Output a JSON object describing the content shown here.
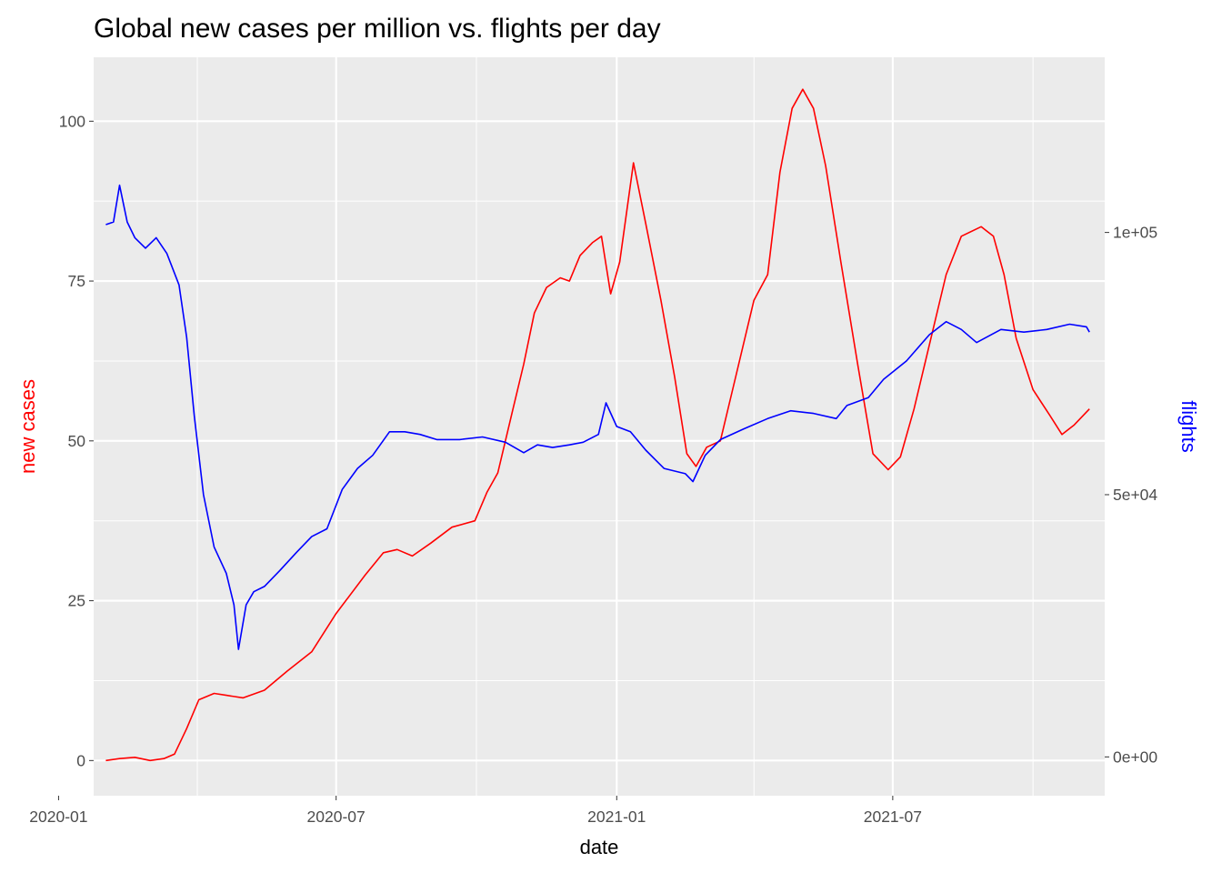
{
  "chart_data": {
    "type": "line",
    "title": "Global new cases per million vs. flights per day",
    "xlabel": "date",
    "ylabel_left": "new cases",
    "ylabel_right": "flights",
    "xlim": [
      "2020-01-24",
      "2021-11-17"
    ],
    "ylim_left": [
      -5.5,
      110
    ],
    "ylim_right": [
      -7400,
      133400
    ],
    "x_ticks": [
      "2020-01",
      "2020-07",
      "2021-01",
      "2021-07"
    ],
    "y_ticks_left": [
      0,
      25,
      50,
      75,
      100
    ],
    "y_tick_labels_left": [
      "0",
      "25",
      "50",
      "75",
      "100"
    ],
    "y_ticks_right": [
      0,
      50000,
      100000
    ],
    "y_tick_labels_right": [
      "0e+00",
      "5e+04",
      "1e+05"
    ],
    "grid": true,
    "legend": "none",
    "colors": {
      "panel": "#ebebeb",
      "grid": "#ffffff",
      "new_cases": "#ff0000",
      "flights": "#0000ff",
      "tick_text": "#4d4d4d"
    },
    "series": [
      {
        "axis": "left",
        "color": "#ff0000",
        "points": [
          [
            "2020-02-01",
            0.0
          ],
          [
            "2020-02-10",
            0.3
          ],
          [
            "2020-02-20",
            0.5
          ],
          [
            "2020-03-01",
            0.0
          ],
          [
            "2020-03-10",
            0.3
          ],
          [
            "2020-03-17",
            1.0
          ],
          [
            "2020-03-25",
            5.0
          ],
          [
            "2020-04-02",
            9.5
          ],
          [
            "2020-04-12",
            10.5
          ],
          [
            "2020-04-20",
            10.2
          ],
          [
            "2020-05-01",
            9.8
          ],
          [
            "2020-05-15",
            11.0
          ],
          [
            "2020-05-30",
            14.0
          ],
          [
            "2020-06-15",
            17.0
          ],
          [
            "2020-07-01",
            23.0
          ],
          [
            "2020-07-20",
            29.0
          ],
          [
            "2020-08-01",
            32.5
          ],
          [
            "2020-08-10",
            33.0
          ],
          [
            "2020-08-20",
            32.0
          ],
          [
            "2020-09-01",
            34.0
          ],
          [
            "2020-09-15",
            36.5
          ],
          [
            "2020-09-30",
            37.5
          ],
          [
            "2020-10-08",
            42.0
          ],
          [
            "2020-10-15",
            45.0
          ],
          [
            "2020-10-25",
            55.0
          ],
          [
            "2020-11-01",
            62.0
          ],
          [
            "2020-11-08",
            70.0
          ],
          [
            "2020-11-16",
            74.0
          ],
          [
            "2020-11-25",
            75.5
          ],
          [
            "2020-12-01",
            75.0
          ],
          [
            "2020-12-08",
            79.0
          ],
          [
            "2020-12-16",
            81.0
          ],
          [
            "2020-12-22",
            82.0
          ],
          [
            "2020-12-28",
            73.0
          ],
          [
            "2021-01-03",
            78.0
          ],
          [
            "2021-01-12",
            93.5
          ],
          [
            "2021-01-20",
            84.0
          ],
          [
            "2021-01-30",
            72.0
          ],
          [
            "2021-02-08",
            60.0
          ],
          [
            "2021-02-16",
            48.0
          ],
          [
            "2021-02-22",
            46.0
          ],
          [
            "2021-03-01",
            49.0
          ],
          [
            "2021-03-10",
            50.0
          ],
          [
            "2021-03-20",
            60.0
          ],
          [
            "2021-04-01",
            72.0
          ],
          [
            "2021-04-10",
            76.0
          ],
          [
            "2021-04-18",
            92.0
          ],
          [
            "2021-04-26",
            102.0
          ],
          [
            "2021-05-03",
            105.0
          ],
          [
            "2021-05-10",
            102.0
          ],
          [
            "2021-05-18",
            93.0
          ],
          [
            "2021-05-28",
            78.0
          ],
          [
            "2021-06-08",
            62.0
          ],
          [
            "2021-06-18",
            48.0
          ],
          [
            "2021-06-28",
            45.5
          ],
          [
            "2021-07-06",
            47.5
          ],
          [
            "2021-07-15",
            55.0
          ],
          [
            "2021-07-25",
            65.0
          ],
          [
            "2021-08-05",
            76.0
          ],
          [
            "2021-08-15",
            82.0
          ],
          [
            "2021-08-28",
            83.5
          ],
          [
            "2021-09-05",
            82.0
          ],
          [
            "2021-09-12",
            76.0
          ],
          [
            "2021-09-20",
            66.0
          ],
          [
            "2021-10-01",
            58.0
          ],
          [
            "2021-10-12",
            54.0
          ],
          [
            "2021-10-20",
            51.0
          ],
          [
            "2021-10-28",
            52.5
          ],
          [
            "2021-11-07",
            55.0
          ]
        ]
      },
      {
        "axis": "right",
        "color": "#0000ff",
        "points": [
          [
            "2020-02-01",
            101500
          ],
          [
            "2020-02-06",
            102000
          ],
          [
            "2020-02-10",
            109000
          ],
          [
            "2020-02-15",
            102000
          ],
          [
            "2020-02-20",
            99000
          ],
          [
            "2020-02-27",
            97000
          ],
          [
            "2020-03-05",
            99000
          ],
          [
            "2020-03-12",
            96000
          ],
          [
            "2020-03-20",
            90000
          ],
          [
            "2020-03-25",
            80000
          ],
          [
            "2020-03-30",
            65000
          ],
          [
            "2020-04-05",
            50000
          ],
          [
            "2020-04-12",
            40000
          ],
          [
            "2020-04-20",
            35000
          ],
          [
            "2020-04-25",
            29000
          ],
          [
            "2020-04-28",
            20500
          ],
          [
            "2020-05-03",
            29000
          ],
          [
            "2020-05-08",
            31500
          ],
          [
            "2020-05-15",
            32500
          ],
          [
            "2020-05-25",
            35500
          ],
          [
            "2020-06-05",
            39000
          ],
          [
            "2020-06-15",
            42000
          ],
          [
            "2020-06-25",
            43500
          ],
          [
            "2020-07-05",
            51000
          ],
          [
            "2020-07-15",
            55000
          ],
          [
            "2020-07-25",
            57500
          ],
          [
            "2020-08-05",
            62000
          ],
          [
            "2020-08-15",
            62000
          ],
          [
            "2020-08-25",
            61500
          ],
          [
            "2020-09-05",
            60500
          ],
          [
            "2020-09-20",
            60500
          ],
          [
            "2020-10-05",
            61000
          ],
          [
            "2020-10-20",
            60000
          ],
          [
            "2020-11-01",
            58000
          ],
          [
            "2020-11-10",
            59500
          ],
          [
            "2020-11-20",
            59000
          ],
          [
            "2020-12-01",
            59500
          ],
          [
            "2020-12-10",
            60000
          ],
          [
            "2020-12-20",
            61500
          ],
          [
            "2020-12-25",
            67500
          ],
          [
            "2021-01-01",
            63000
          ],
          [
            "2021-01-10",
            62000
          ],
          [
            "2021-01-20",
            58500
          ],
          [
            "2021-02-01",
            55000
          ],
          [
            "2021-02-15",
            54000
          ],
          [
            "2021-02-20",
            52500
          ],
          [
            "2021-02-28",
            57500
          ],
          [
            "2021-03-10",
            60500
          ],
          [
            "2021-03-25",
            62500
          ],
          [
            "2021-04-10",
            64500
          ],
          [
            "2021-04-25",
            66000
          ],
          [
            "2021-05-10",
            65500
          ],
          [
            "2021-05-25",
            64500
          ],
          [
            "2021-06-01",
            67000
          ],
          [
            "2021-06-15",
            68500
          ],
          [
            "2021-06-25",
            72000
          ],
          [
            "2021-07-10",
            75500
          ],
          [
            "2021-07-25",
            80500
          ],
          [
            "2021-08-05",
            83000
          ],
          [
            "2021-08-15",
            81500
          ],
          [
            "2021-08-25",
            79000
          ],
          [
            "2021-09-10",
            81500
          ],
          [
            "2021-09-25",
            81000
          ],
          [
            "2021-10-10",
            81500
          ],
          [
            "2021-10-25",
            82500
          ],
          [
            "2021-11-05",
            82000
          ],
          [
            "2021-11-07",
            81000
          ]
        ]
      }
    ]
  }
}
